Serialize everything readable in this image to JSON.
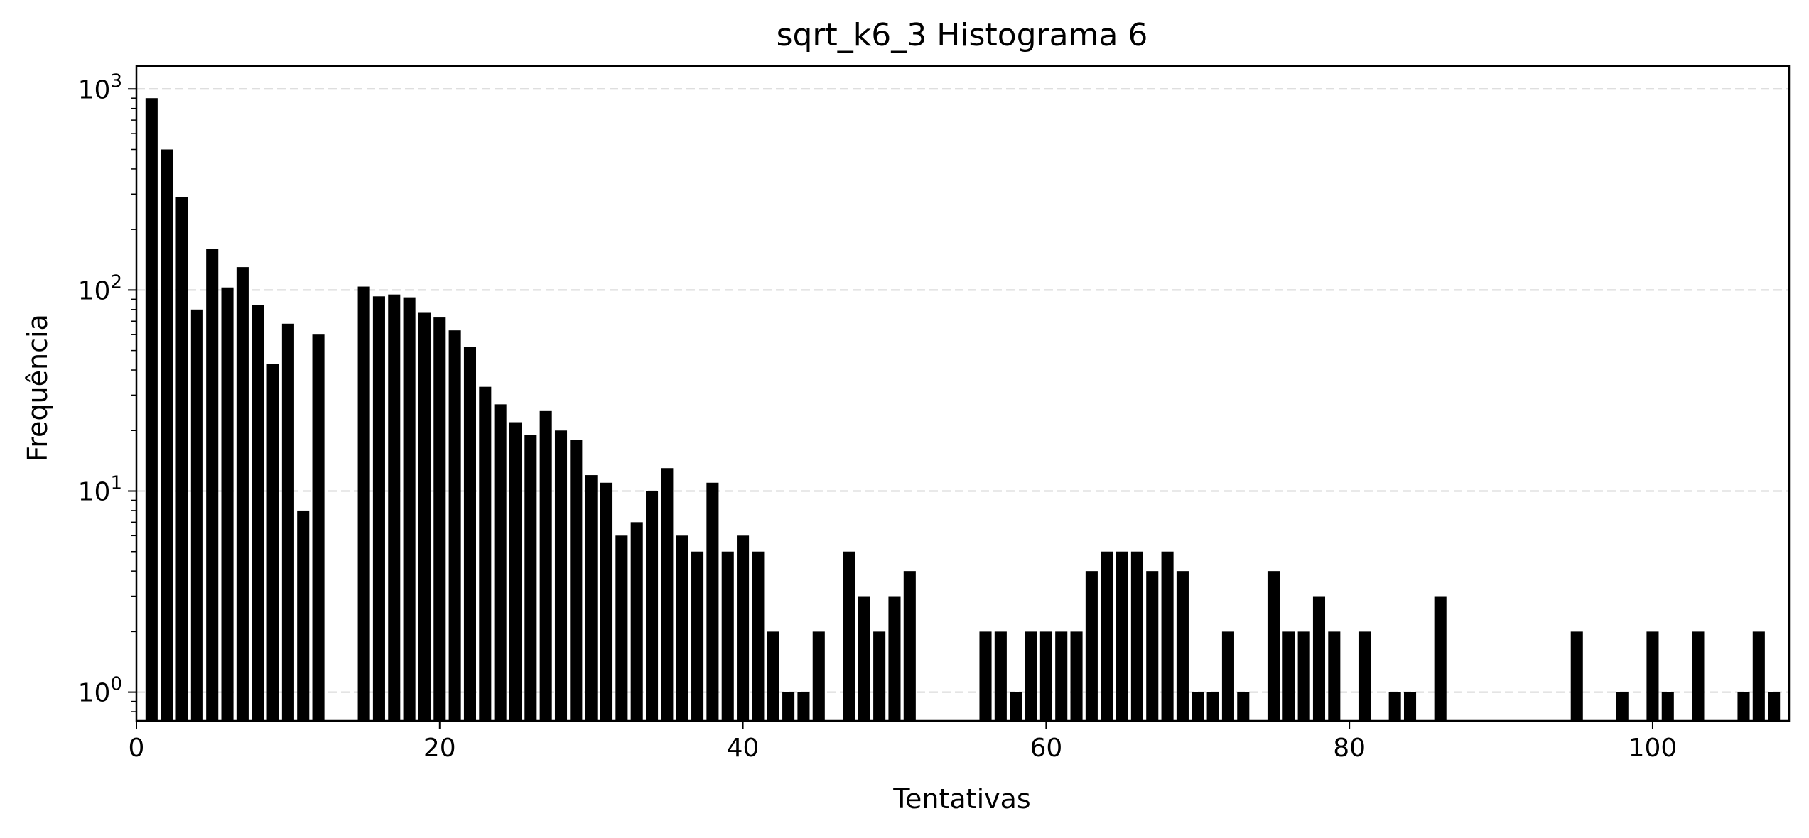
{
  "chart_data": {
    "type": "bar",
    "title": "sqrt_k6_3 Histograma 6",
    "xlabel": "Tentativas",
    "ylabel": "Frequência",
    "yscale": "log",
    "xlim": [
      0,
      109
    ],
    "ylim": [
      0.72,
      1300
    ],
    "xticks": [
      0,
      20,
      40,
      60,
      80,
      100
    ],
    "xtick_labels": [
      "0",
      "20",
      "40",
      "60",
      "80",
      "100"
    ],
    "yticks": [
      {
        "value": 1,
        "base": "10",
        "exponent": "0"
      },
      {
        "value": 10,
        "base": "10",
        "exponent": "1"
      },
      {
        "value": 100,
        "base": "10",
        "exponent": "2"
      },
      {
        "value": 1000,
        "base": "10",
        "exponent": "3"
      }
    ],
    "grid": {
      "axis": "y",
      "style": "dashed",
      "color": "#d3d3d3"
    },
    "bar_color": "#000000",
    "bars": [
      {
        "x": 1,
        "y": 900
      },
      {
        "x": 2,
        "y": 500
      },
      {
        "x": 3,
        "y": 290
      },
      {
        "x": 4,
        "y": 80
      },
      {
        "x": 5,
        "y": 160
      },
      {
        "x": 6,
        "y": 103
      },
      {
        "x": 7,
        "y": 130
      },
      {
        "x": 8,
        "y": 84
      },
      {
        "x": 9,
        "y": 43
      },
      {
        "x": 10,
        "y": 68
      },
      {
        "x": 11,
        "y": 8
      },
      {
        "x": 12,
        "y": 60
      },
      {
        "x": 15,
        "y": 104
      },
      {
        "x": 16,
        "y": 93
      },
      {
        "x": 17,
        "y": 95
      },
      {
        "x": 18,
        "y": 92
      },
      {
        "x": 19,
        "y": 77
      },
      {
        "x": 20,
        "y": 73
      },
      {
        "x": 21,
        "y": 63
      },
      {
        "x": 22,
        "y": 52
      },
      {
        "x": 23,
        "y": 33
      },
      {
        "x": 24,
        "y": 27
      },
      {
        "x": 25,
        "y": 22
      },
      {
        "x": 26,
        "y": 19
      },
      {
        "x": 27,
        "y": 25
      },
      {
        "x": 28,
        "y": 20
      },
      {
        "x": 29,
        "y": 18
      },
      {
        "x": 30,
        "y": 12
      },
      {
        "x": 31,
        "y": 11
      },
      {
        "x": 32,
        "y": 6
      },
      {
        "x": 33,
        "y": 7
      },
      {
        "x": 34,
        "y": 10
      },
      {
        "x": 35,
        "y": 13
      },
      {
        "x": 36,
        "y": 6
      },
      {
        "x": 37,
        "y": 5
      },
      {
        "x": 38,
        "y": 11
      },
      {
        "x": 39,
        "y": 5
      },
      {
        "x": 40,
        "y": 6
      },
      {
        "x": 41,
        "y": 5
      },
      {
        "x": 42,
        "y": 2
      },
      {
        "x": 43,
        "y": 1
      },
      {
        "x": 44,
        "y": 1
      },
      {
        "x": 45,
        "y": 2
      },
      {
        "x": 47,
        "y": 5
      },
      {
        "x": 48,
        "y": 3
      },
      {
        "x": 49,
        "y": 2
      },
      {
        "x": 50,
        "y": 3
      },
      {
        "x": 51,
        "y": 4
      },
      {
        "x": 56,
        "y": 2
      },
      {
        "x": 57,
        "y": 2
      },
      {
        "x": 58,
        "y": 1
      },
      {
        "x": 59,
        "y": 2
      },
      {
        "x": 60,
        "y": 2
      },
      {
        "x": 61,
        "y": 2
      },
      {
        "x": 62,
        "y": 2
      },
      {
        "x": 63,
        "y": 4
      },
      {
        "x": 64,
        "y": 5
      },
      {
        "x": 65,
        "y": 5
      },
      {
        "x": 66,
        "y": 5
      },
      {
        "x": 67,
        "y": 4
      },
      {
        "x": 68,
        "y": 5
      },
      {
        "x": 69,
        "y": 4
      },
      {
        "x": 70,
        "y": 1
      },
      {
        "x": 71,
        "y": 1
      },
      {
        "x": 72,
        "y": 2
      },
      {
        "x": 73,
        "y": 1
      },
      {
        "x": 75,
        "y": 4
      },
      {
        "x": 76,
        "y": 2
      },
      {
        "x": 77,
        "y": 2
      },
      {
        "x": 78,
        "y": 3
      },
      {
        "x": 79,
        "y": 2
      },
      {
        "x": 81,
        "y": 2
      },
      {
        "x": 83,
        "y": 1
      },
      {
        "x": 84,
        "y": 1
      },
      {
        "x": 86,
        "y": 3
      },
      {
        "x": 95,
        "y": 2
      },
      {
        "x": 98,
        "y": 1
      },
      {
        "x": 100,
        "y": 2
      },
      {
        "x": 101,
        "y": 1
      },
      {
        "x": 103,
        "y": 2
      },
      {
        "x": 106,
        "y": 1
      },
      {
        "x": 107,
        "y": 2
      },
      {
        "x": 108,
        "y": 1
      }
    ]
  }
}
